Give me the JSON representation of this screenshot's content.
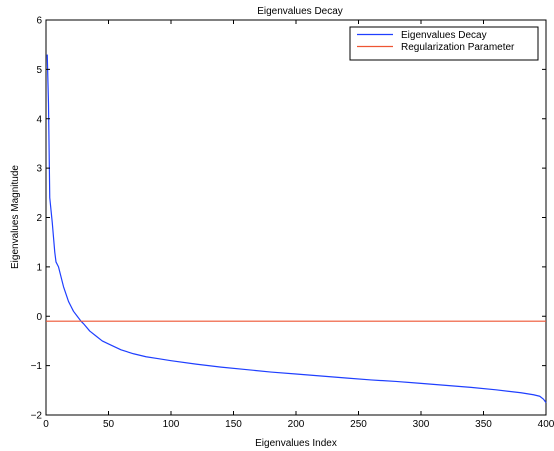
{
  "chart_data": {
    "type": "line",
    "title": "Eigenvalues Decay",
    "xlabel": "Eigenvalues Index",
    "ylabel": "Eigenvalues Magnitude",
    "xlim": [
      0,
      400
    ],
    "ylim": [
      -2,
      6
    ],
    "xticks": [
      0,
      50,
      100,
      150,
      200,
      250,
      300,
      350,
      400
    ],
    "yticks": [
      -2,
      -1,
      0,
      1,
      2,
      3,
      4,
      5,
      6
    ],
    "grid": false,
    "legend_position": "top-right",
    "series": [
      {
        "name": "Eigenvalues Decay",
        "color": "#1f3fff",
        "x": [
          1,
          2,
          3,
          4,
          5,
          6,
          7,
          8,
          10,
          12,
          14,
          16,
          18,
          20,
          22,
          25,
          28,
          30,
          35,
          40,
          45,
          50,
          60,
          70,
          80,
          90,
          100,
          120,
          140,
          160,
          180,
          200,
          220,
          240,
          260,
          280,
          300,
          320,
          340,
          360,
          380,
          390,
          395,
          398,
          400
        ],
        "y": [
          5.3,
          4.3,
          2.4,
          2.15,
          1.9,
          1.6,
          1.3,
          1.1,
          1.0,
          0.8,
          0.6,
          0.45,
          0.3,
          0.2,
          0.1,
          0.0,
          -0.1,
          -0.15,
          -0.3,
          -0.4,
          -0.5,
          -0.56,
          -0.68,
          -0.76,
          -0.82,
          -0.86,
          -0.9,
          -0.97,
          -1.03,
          -1.08,
          -1.13,
          -1.17,
          -1.21,
          -1.25,
          -1.29,
          -1.32,
          -1.36,
          -1.4,
          -1.44,
          -1.49,
          -1.55,
          -1.59,
          -1.62,
          -1.68,
          -1.75
        ]
      },
      {
        "name": "Regularization Parameter",
        "color": "#ee5533",
        "x": [
          0,
          400
        ],
        "y": [
          -0.1,
          -0.1
        ]
      }
    ]
  }
}
